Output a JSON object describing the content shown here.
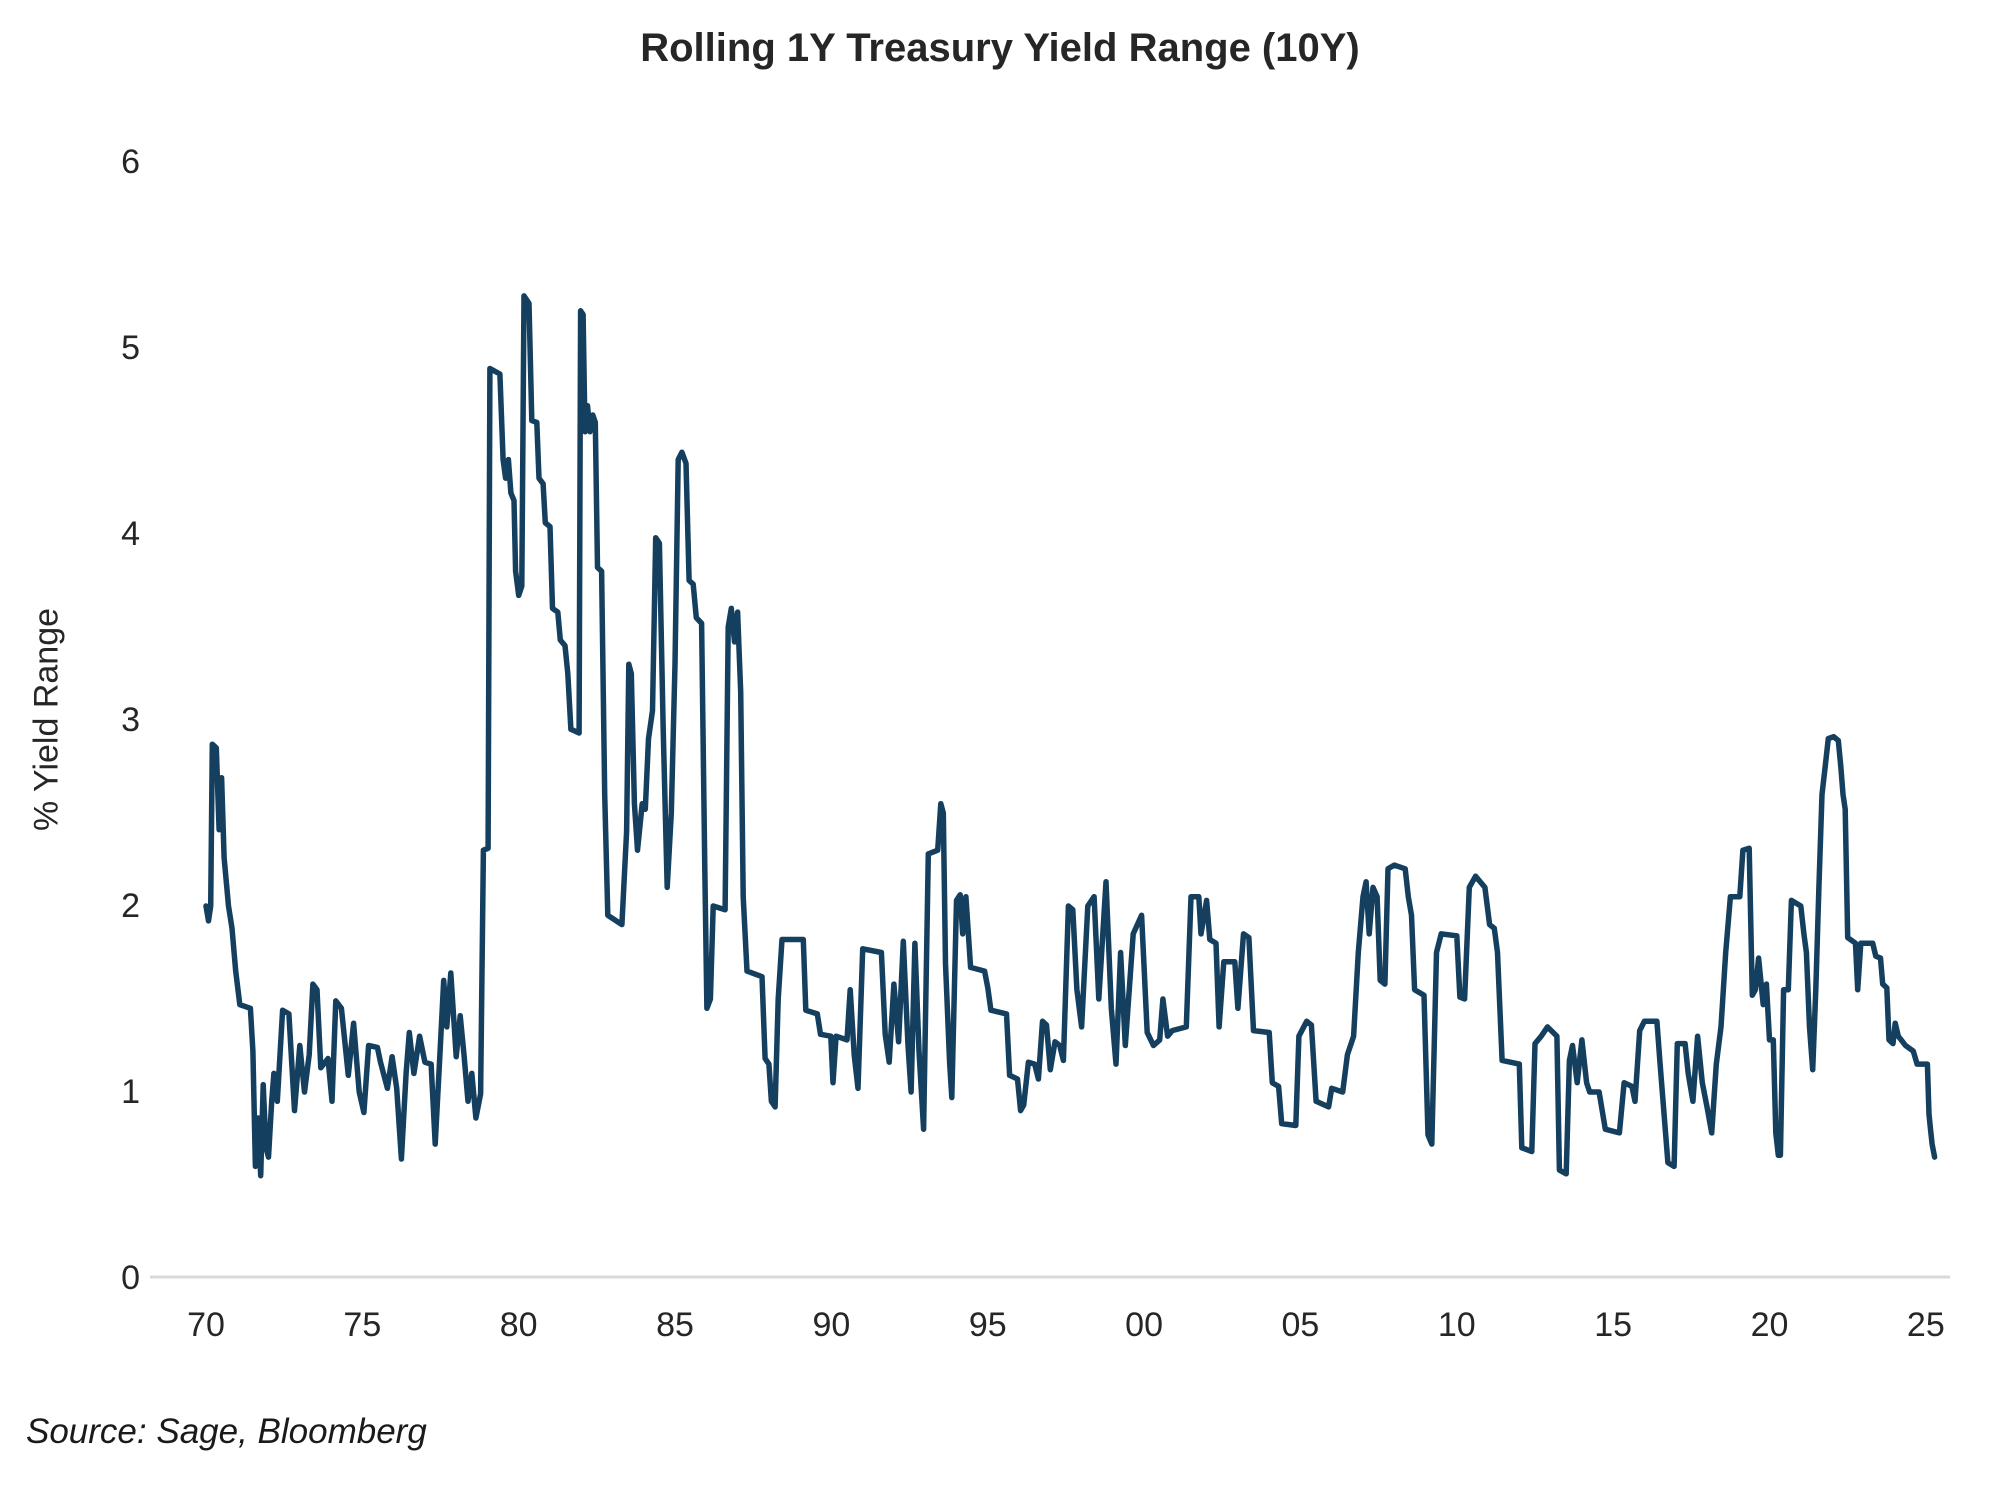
{
  "title": "Rolling 1Y Treasury Yield Range (10Y)",
  "source_note": "Source: Sage, Bloomberg",
  "chart_data": {
    "type": "line",
    "title": "Rolling 1Y Treasury Yield Range (10Y)",
    "xlabel": "",
    "ylabel": "% Yield Range",
    "ylim": [
      0,
      6
    ],
    "xlim": [
      1968.2,
      2025.8
    ],
    "grid": false,
    "legend": "none",
    "line_color": "#153f5e",
    "axis_line_color": "#d9d9d9",
    "y_ticks": [
      0,
      1,
      2,
      3,
      4,
      5,
      6
    ],
    "x_tick_labels": [
      "70",
      "75",
      "80",
      "85",
      "90",
      "95",
      "00",
      "05",
      "10",
      "15",
      "20",
      "25"
    ],
    "x_tick_years": [
      1970,
      1975,
      1980,
      1985,
      1990,
      1995,
      2000,
      2005,
      2010,
      2015,
      2020,
      2025
    ],
    "series": [
      {
        "name": "Rolling 1Y Treasury Yield Range (10Y)",
        "x": [
          1970.0,
          1970.08,
          1970.15,
          1970.2,
          1970.33,
          1970.42,
          1970.5,
          1970.58,
          1970.72,
          1970.83,
          1970.95,
          1971.08,
          1971.42,
          1971.5,
          1971.58,
          1971.67,
          1971.75,
          1971.83,
          1971.92,
          1972.0,
          1972.1,
          1972.17,
          1972.28,
          1972.45,
          1972.65,
          1972.83,
          1973.0,
          1973.15,
          1973.3,
          1973.42,
          1973.55,
          1973.67,
          1973.9,
          1974.03,
          1974.15,
          1974.33,
          1974.55,
          1974.72,
          1974.9,
          1975.05,
          1975.2,
          1975.48,
          1975.58,
          1975.8,
          1975.95,
          1976.1,
          1976.25,
          1976.4,
          1976.5,
          1976.65,
          1976.83,
          1977.0,
          1977.2,
          1977.33,
          1977.48,
          1977.6,
          1977.7,
          1977.83,
          1978.0,
          1978.13,
          1978.25,
          1978.38,
          1978.5,
          1978.63,
          1978.78,
          1978.87,
          1979.02,
          1979.08,
          1979.4,
          1979.5,
          1979.58,
          1979.67,
          1979.75,
          1979.85,
          1979.9,
          1980.0,
          1980.1,
          1980.17,
          1980.33,
          1980.42,
          1980.58,
          1980.65,
          1980.78,
          1980.85,
          1981.0,
          1981.08,
          1981.25,
          1981.33,
          1981.48,
          1981.57,
          1981.67,
          1981.93,
          1981.98,
          1982.06,
          1982.12,
          1982.2,
          1982.28,
          1982.37,
          1982.45,
          1982.52,
          1982.65,
          1982.75,
          1982.85,
          1983.3,
          1983.45,
          1983.52,
          1983.6,
          1983.7,
          1983.8,
          1983.95,
          1984.05,
          1984.15,
          1984.28,
          1984.38,
          1984.5,
          1984.62,
          1984.75,
          1984.88,
          1985.0,
          1985.1,
          1985.22,
          1985.35,
          1985.45,
          1985.58,
          1985.68,
          1985.85,
          1985.95,
          1986.02,
          1986.13,
          1986.22,
          1986.6,
          1986.7,
          1986.8,
          1986.9,
          1987.0,
          1987.1,
          1987.18,
          1987.3,
          1987.78,
          1987.88,
          1988.0,
          1988.08,
          1988.2,
          1988.3,
          1988.42,
          1989.1,
          1989.18,
          1989.55,
          1989.65,
          1989.98,
          1990.05,
          1990.15,
          1990.5,
          1990.6,
          1990.73,
          1990.85,
          1991.0,
          1991.6,
          1991.72,
          1991.85,
          1992.0,
          1992.15,
          1992.3,
          1992.45,
          1992.55,
          1992.67,
          1992.8,
          1992.95,
          1993.1,
          1993.4,
          1993.5,
          1993.58,
          1993.65,
          1993.78,
          1993.85,
          1994.0,
          1994.12,
          1994.2,
          1994.3,
          1994.45,
          1994.9,
          1995.0,
          1995.1,
          1995.6,
          1995.7,
          1995.95,
          1996.05,
          1996.15,
          1996.3,
          1996.5,
          1996.62,
          1996.75,
          1996.88,
          1997.0,
          1997.15,
          1997.3,
          1997.42,
          1997.58,
          1997.72,
          1997.85,
          1998.0,
          1998.2,
          1998.4,
          1998.55,
          1998.78,
          1998.95,
          1999.1,
          1999.25,
          1999.4,
          1999.65,
          1999.92,
          2000.1,
          2000.3,
          2000.5,
          2000.6,
          2000.75,
          2000.9,
          2001.35,
          2001.5,
          2001.75,
          2001.82,
          2002.0,
          2002.1,
          2002.3,
          2002.4,
          2002.55,
          2002.9,
          2003.0,
          2003.18,
          2003.35,
          2003.5,
          2004.0,
          2004.1,
          2004.3,
          2004.4,
          2004.85,
          2004.95,
          2005.2,
          2005.35,
          2005.5,
          2005.9,
          2006.0,
          2006.35,
          2006.5,
          2006.7,
          2006.85,
          2007.0,
          2007.1,
          2007.2,
          2007.32,
          2007.45,
          2007.55,
          2007.7,
          2007.8,
          2008.0,
          2008.35,
          2008.45,
          2008.55,
          2008.65,
          2008.95,
          2009.08,
          2009.2,
          2009.35,
          2009.5,
          2010.0,
          2010.1,
          2010.25,
          2010.4,
          2010.6,
          2010.9,
          2011.05,
          2011.2,
          2011.3,
          2011.45,
          2012.0,
          2012.08,
          2012.4,
          2012.5,
          2012.7,
          2012.9,
          2013.2,
          2013.28,
          2013.5,
          2013.6,
          2013.7,
          2013.85,
          2014.0,
          2014.15,
          2014.25,
          2014.55,
          2014.65,
          2014.75,
          2015.2,
          2015.35,
          2015.6,
          2015.7,
          2015.85,
          2016.0,
          2016.4,
          2016.5,
          2016.75,
          2016.95,
          2017.05,
          2017.3,
          2017.4,
          2017.55,
          2017.7,
          2017.85,
          2018.0,
          2018.15,
          2018.3,
          2018.45,
          2018.6,
          2018.75,
          2019.05,
          2019.15,
          2019.35,
          2019.45,
          2019.55,
          2019.65,
          2019.8,
          2019.9,
          2020.0,
          2020.12,
          2020.2,
          2020.28,
          2020.35,
          2020.45,
          2020.6,
          2020.7,
          2021.0,
          2021.1,
          2021.18,
          2021.28,
          2021.38,
          2021.48,
          2021.58,
          2021.68,
          2021.78,
          2021.88,
          2022.05,
          2022.2,
          2022.28,
          2022.35,
          2022.42,
          2022.5,
          2022.75,
          2022.82,
          2022.92,
          2023.3,
          2023.4,
          2023.55,
          2023.62,
          2023.75,
          2023.82,
          2023.95,
          2024.02,
          2024.12,
          2024.35,
          2024.6,
          2024.72,
          2025.05,
          2025.1,
          2025.15,
          2025.2,
          2025.28
        ],
        "values": [
          2.0,
          1.92,
          2.0,
          2.87,
          2.85,
          2.41,
          2.69,
          2.26,
          2.0,
          1.88,
          1.65,
          1.47,
          1.45,
          1.22,
          0.6,
          0.86,
          0.55,
          1.04,
          0.7,
          0.65,
          0.95,
          1.1,
          0.95,
          1.44,
          1.42,
          0.9,
          1.25,
          1.0,
          1.2,
          1.58,
          1.55,
          1.13,
          1.18,
          0.95,
          1.49,
          1.45,
          1.09,
          1.37,
          1.0,
          0.89,
          1.25,
          1.24,
          1.16,
          1.02,
          1.19,
          1.02,
          0.64,
          1.1,
          1.32,
          1.1,
          1.3,
          1.16,
          1.15,
          0.72,
          1.2,
          1.6,
          1.35,
          1.64,
          1.19,
          1.41,
          1.2,
          0.95,
          1.1,
          0.86,
          0.99,
          2.3,
          2.31,
          4.89,
          4.86,
          4.4,
          4.3,
          4.4,
          4.22,
          4.18,
          3.8,
          3.67,
          3.72,
          5.28,
          5.24,
          4.61,
          4.6,
          4.3,
          4.27,
          4.06,
          4.04,
          3.6,
          3.58,
          3.43,
          3.4,
          3.25,
          2.95,
          2.93,
          5.2,
          5.18,
          4.55,
          4.69,
          4.55,
          4.64,
          4.6,
          3.82,
          3.8,
          2.6,
          1.95,
          1.9,
          2.4,
          3.3,
          3.25,
          2.55,
          2.3,
          2.55,
          2.52,
          2.9,
          3.05,
          3.98,
          3.95,
          2.95,
          2.1,
          2.5,
          3.3,
          4.4,
          4.44,
          4.38,
          3.75,
          3.73,
          3.55,
          3.52,
          2.2,
          1.45,
          1.5,
          2.0,
          1.98,
          3.5,
          3.6,
          3.42,
          3.58,
          3.15,
          2.05,
          1.65,
          1.62,
          1.18,
          1.15,
          0.95,
          0.92,
          1.5,
          1.82,
          1.82,
          1.44,
          1.42,
          1.31,
          1.3,
          1.05,
          1.3,
          1.28,
          1.55,
          1.2,
          1.02,
          1.77,
          1.75,
          1.31,
          1.16,
          1.58,
          1.27,
          1.81,
          1.25,
          1.0,
          1.8,
          1.22,
          0.8,
          2.28,
          2.3,
          2.55,
          2.5,
          1.69,
          1.16,
          0.97,
          2.03,
          2.06,
          1.85,
          2.05,
          1.67,
          1.65,
          1.56,
          1.44,
          1.42,
          1.09,
          1.07,
          0.9,
          0.93,
          1.16,
          1.15,
          1.07,
          1.38,
          1.36,
          1.12,
          1.27,
          1.25,
          1.17,
          2.0,
          1.98,
          1.55,
          1.35,
          2.0,
          2.05,
          1.5,
          2.13,
          1.45,
          1.15,
          1.75,
          1.25,
          1.85,
          1.95,
          1.32,
          1.25,
          1.28,
          1.5,
          1.3,
          1.33,
          1.35,
          2.05,
          2.05,
          1.85,
          2.03,
          1.82,
          1.8,
          1.35,
          1.7,
          1.7,
          1.45,
          1.85,
          1.83,
          1.33,
          1.32,
          1.05,
          1.03,
          0.83,
          0.82,
          1.3,
          1.38,
          1.36,
          0.95,
          0.92,
          1.02,
          1.0,
          1.2,
          1.3,
          1.75,
          2.05,
          2.13,
          1.85,
          2.1,
          2.05,
          1.6,
          1.58,
          2.2,
          2.22,
          2.2,
          2.05,
          1.95,
          1.55,
          1.52,
          0.77,
          0.72,
          1.75,
          1.85,
          1.84,
          1.51,
          1.5,
          2.1,
          2.16,
          2.1,
          1.9,
          1.88,
          1.75,
          1.17,
          1.15,
          0.7,
          0.68,
          1.26,
          1.3,
          1.35,
          1.3,
          0.58,
          0.56,
          1.17,
          1.25,
          1.05,
          1.28,
          1.05,
          1.0,
          1.0,
          0.9,
          0.8,
          0.78,
          1.05,
          1.03,
          0.95,
          1.33,
          1.38,
          1.38,
          1.15,
          0.62,
          0.6,
          1.26,
          1.26,
          1.1,
          0.95,
          1.3,
          1.05,
          0.92,
          0.78,
          1.15,
          1.35,
          1.75,
          2.05,
          2.05,
          2.3,
          2.31,
          1.52,
          1.55,
          1.72,
          1.47,
          1.58,
          1.28,
          1.28,
          0.78,
          0.66,
          0.66,
          1.55,
          1.55,
          2.03,
          2.0,
          1.85,
          1.75,
          1.35,
          1.12,
          1.55,
          2.1,
          2.6,
          2.75,
          2.9,
          2.91,
          2.89,
          2.75,
          2.6,
          2.52,
          1.83,
          1.8,
          1.55,
          1.8,
          1.8,
          1.73,
          1.72,
          1.58,
          1.56,
          1.28,
          1.26,
          1.37,
          1.3,
          1.25,
          1.22,
          1.15,
          1.15,
          0.88,
          0.8,
          0.72,
          0.65
        ]
      }
    ]
  }
}
